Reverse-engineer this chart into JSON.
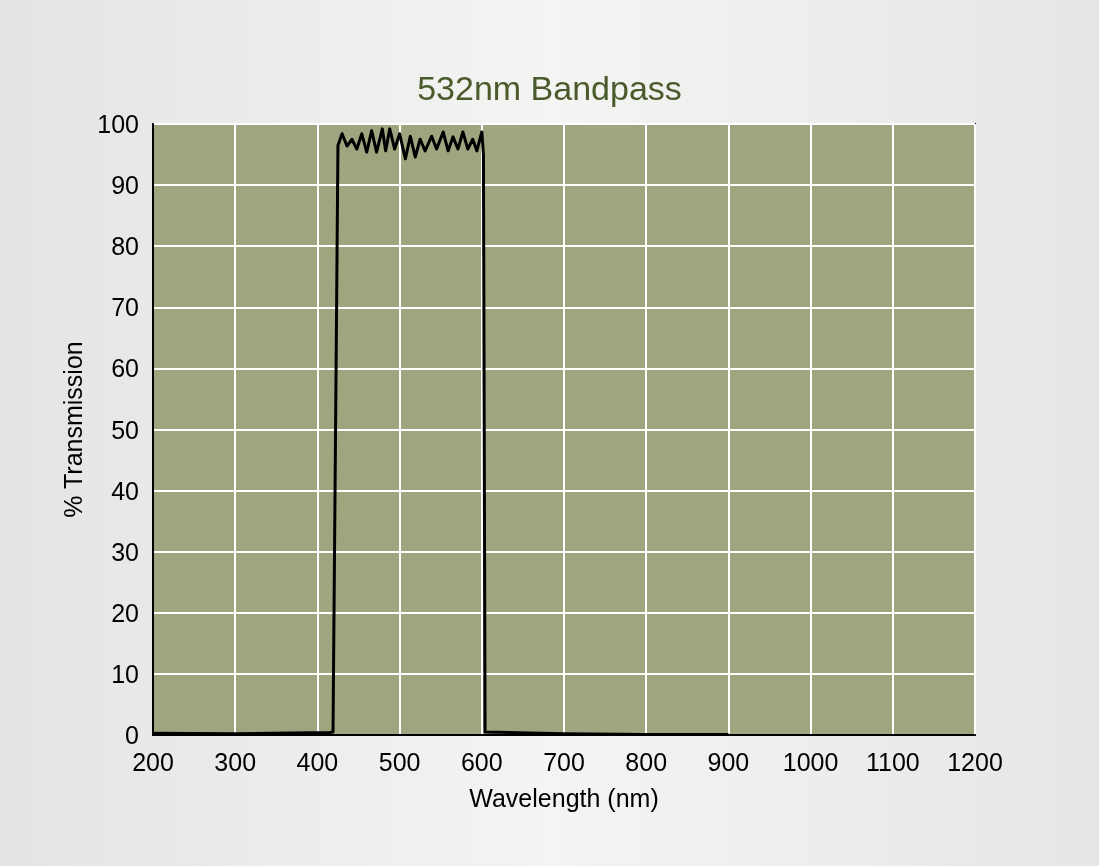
{
  "chart_data": {
    "type": "line",
    "title": "532nm Bandpass",
    "xlabel": "Wavelength (nm)",
    "ylabel": "% Transmission",
    "series": [
      {
        "color": "#000000",
        "x": [
          200,
          300,
          415,
          419,
          425,
          430,
          436,
          442,
          448,
          454,
          460,
          466,
          472,
          479,
          483,
          488,
          494,
          500,
          507,
          513,
          519,
          525,
          531,
          539,
          545,
          553,
          559,
          565,
          571,
          577,
          583,
          589,
          594,
          600,
          602,
          604,
          700,
          800,
          900
        ],
        "values": [
          0.3,
          0.2,
          0.4,
          0.5,
          96.5,
          98.4,
          96.4,
          97.5,
          95.9,
          98.4,
          95.4,
          98.9,
          95.4,
          99.2,
          95.6,
          99.2,
          95.9,
          98.4,
          94.3,
          98,
          94.6,
          97.5,
          95.6,
          98,
          95.9,
          98.7,
          95.6,
          97.9,
          95.9,
          98.7,
          95.9,
          97.5,
          95.6,
          98.7,
          95,
          0.5,
          0.2,
          0.1,
          0.1
        ]
      }
    ],
    "xlim": [
      200,
      1200
    ],
    "xticks": [
      200,
      300,
      400,
      500,
      600,
      700,
      800,
      900,
      1000,
      1100,
      1200
    ],
    "ylim": [
      0,
      100
    ],
    "yticks": [
      0,
      10,
      20,
      30,
      40,
      50,
      60,
      70,
      80,
      90,
      100
    ],
    "grid": true,
    "marker": "none",
    "line_style": "solid"
  }
}
